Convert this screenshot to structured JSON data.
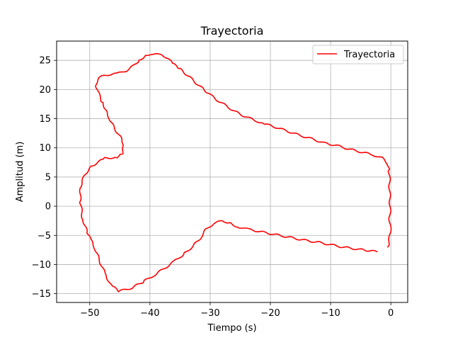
{
  "chart_data": {
    "type": "line",
    "title": "Trayectoria",
    "xlabel": "Tiempo (s)",
    "ylabel": "Amplitud (m)",
    "xlim": [
      -55.5,
      2.8
    ],
    "ylim": [
      -16.5,
      28.3
    ],
    "xticks": [
      -50,
      -40,
      -30,
      -20,
      -10,
      0
    ],
    "yticks": [
      -15,
      -10,
      -5,
      0,
      5,
      10,
      15,
      20,
      25
    ],
    "xtick_labels": [
      "−50",
      "−40",
      "−30",
      "−20",
      "−10",
      "0"
    ],
    "ytick_labels": [
      "−15",
      "−10",
      "−5",
      "0",
      "5",
      "10",
      "15",
      "20",
      "25"
    ],
    "grid": true,
    "legend_position": "top-right",
    "colors": {
      "series": "#ff0000",
      "grid": "#b0b0b0",
      "axes": "#000000"
    },
    "series": [
      {
        "name": "Trayectoria",
        "color": "#ff0000",
        "points": [
          [
            -2.3,
            -7.8
          ],
          [
            -4,
            -7.6
          ],
          [
            -6,
            -7.3
          ],
          [
            -8,
            -7.0
          ],
          [
            -10,
            -6.6
          ],
          [
            -12,
            -6.2
          ],
          [
            -14,
            -5.9
          ],
          [
            -16,
            -5.5
          ],
          [
            -18,
            -5.1
          ],
          [
            -20,
            -4.7
          ],
          [
            -22,
            -4.3
          ],
          [
            -24,
            -3.9
          ],
          [
            -25.5,
            -3.5
          ],
          [
            -27,
            -2.8
          ],
          [
            -28,
            -2.5
          ],
          [
            -29.5,
            -3.0
          ],
          [
            -30.7,
            -4.0
          ],
          [
            -31.5,
            -5.3
          ],
          [
            -32.8,
            -6.8
          ],
          [
            -34.5,
            -8.3
          ],
          [
            -36,
            -9.5
          ],
          [
            -37.8,
            -10.8
          ],
          [
            -39.6,
            -12.0
          ],
          [
            -41.2,
            -13.0
          ],
          [
            -43,
            -14.0
          ],
          [
            -45.2,
            -14.6
          ],
          [
            -46.5,
            -13.5
          ],
          [
            -47.5,
            -11.5
          ],
          [
            -48.5,
            -9.0
          ],
          [
            -49.2,
            -7.0
          ],
          [
            -50.0,
            -5.5
          ],
          [
            -50.5,
            -4.3
          ],
          [
            -51.2,
            -2.0
          ],
          [
            -51.6,
            1.0
          ],
          [
            -51.5,
            3.5
          ],
          [
            -50.8,
            5.5
          ],
          [
            -49.5,
            7.0
          ],
          [
            -47.5,
            8.2
          ],
          [
            -45.5,
            8.4
          ],
          [
            -44.6,
            9.0
          ],
          [
            -44.3,
            10.5
          ],
          [
            -45.0,
            12.0
          ],
          [
            -46.0,
            13.5
          ],
          [
            -46.7,
            15.0
          ],
          [
            -47.3,
            16.5
          ],
          [
            -48.0,
            18.0
          ],
          [
            -48.6,
            19.5
          ],
          [
            -49.0,
            21.0
          ],
          [
            -48.5,
            22.0
          ],
          [
            -47.3,
            22.5
          ],
          [
            -45.5,
            22.7
          ],
          [
            -44.0,
            23.2
          ],
          [
            -42.8,
            24.0
          ],
          [
            -41.8,
            25.0
          ],
          [
            -40.5,
            26.0
          ],
          [
            -39.5,
            26.0
          ],
          [
            -38.0,
            26.0
          ],
          [
            -37.0,
            25.3
          ],
          [
            -36.3,
            24.5
          ],
          [
            -35.0,
            23.5
          ],
          [
            -33.5,
            22.2
          ],
          [
            -32.0,
            20.8
          ],
          [
            -30.5,
            19.5
          ],
          [
            -29.0,
            18.3
          ],
          [
            -27.5,
            17.3
          ],
          [
            -26.0,
            16.3
          ],
          [
            -24.5,
            15.5
          ],
          [
            -22.8,
            14.8
          ],
          [
            -21.0,
            14.1
          ],
          [
            -19.0,
            13.5
          ],
          [
            -17.0,
            12.8
          ],
          [
            -15.0,
            12.1
          ],
          [
            -13.0,
            11.5
          ],
          [
            -11.0,
            10.8
          ],
          [
            -9.0,
            10.4
          ],
          [
            -7.0,
            9.8
          ],
          [
            -5.0,
            9.3
          ],
          [
            -3.0,
            8.8
          ],
          [
            -1.5,
            8.3
          ],
          [
            -0.5,
            7.3
          ],
          [
            -0.3,
            6.0
          ],
          [
            -0.2,
            4.0
          ],
          [
            -0.2,
            2.0
          ],
          [
            -0.1,
            0.0
          ],
          [
            -0.2,
            -2.0
          ],
          [
            -0.1,
            -4.0
          ],
          [
            -0.2,
            -5.5
          ],
          [
            -0.5,
            -7.0
          ]
        ]
      }
    ]
  }
}
